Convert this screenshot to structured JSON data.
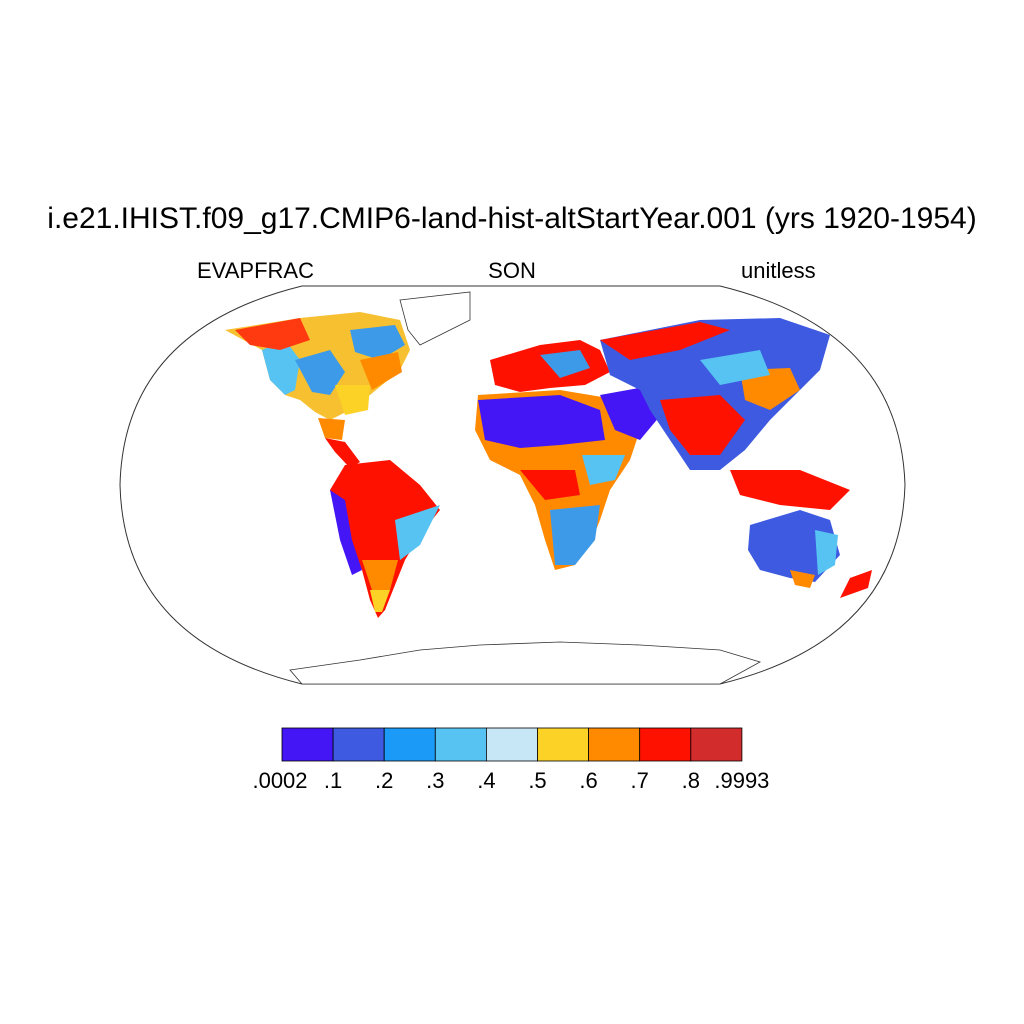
{
  "title": "i.e21.IHIST.f09_g17.CMIP6-land-hist-altStartYear.001 (yrs 1920-1954)",
  "left_label": "EVAPFRAC",
  "center_label": "SON",
  "right_label": "unitless",
  "colorbar": {
    "colors": [
      "#4416f5",
      "#3d5ae0",
      "#1b9bf7",
      "#56c3f2",
      "#c8e7f6",
      "#fdd227",
      "#ff8a00",
      "#ff1100",
      "#d32c2c"
    ],
    "labels": [
      ".0002",
      ".1",
      ".2",
      ".3",
      ".4",
      ".5",
      ".6",
      ".7",
      ".8",
      ".9993"
    ]
  }
}
